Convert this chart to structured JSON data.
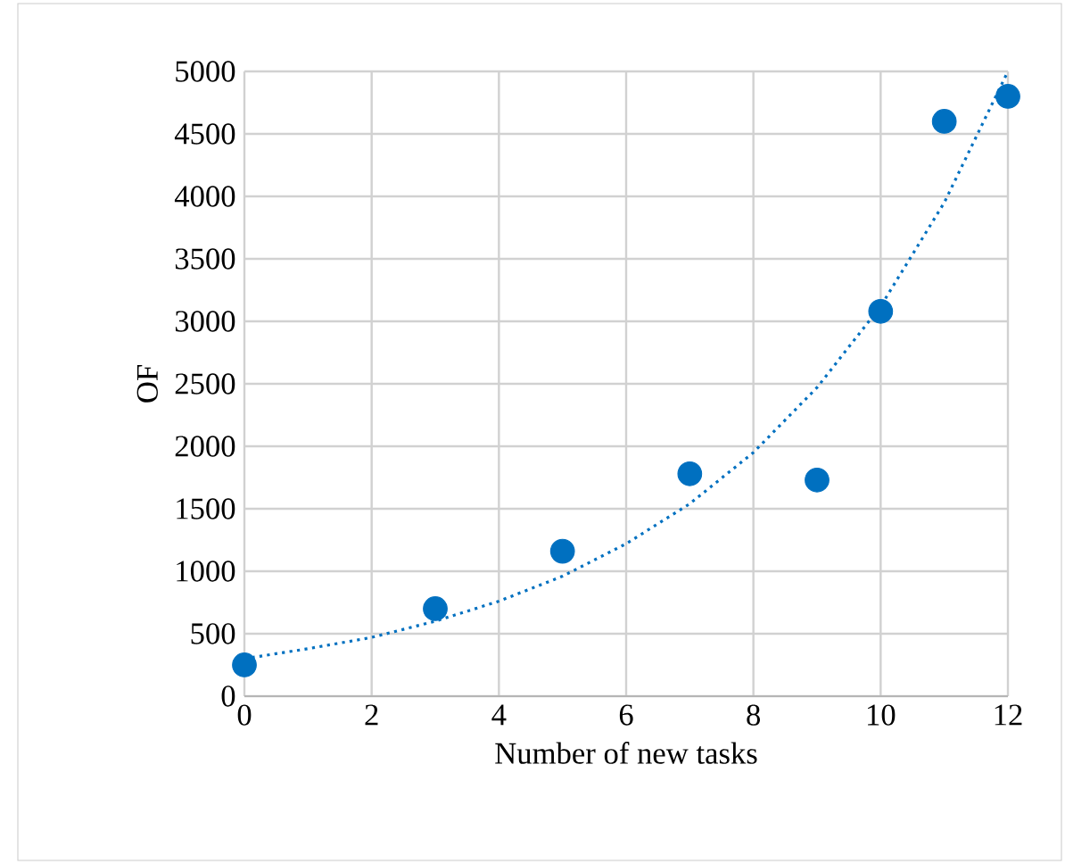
{
  "chart_data": {
    "type": "scatter",
    "xlabel": "Number of new tasks",
    "ylabel": "OF",
    "x": [
      0,
      3,
      5,
      7,
      9,
      10,
      11,
      12
    ],
    "series": [
      {
        "color": "#0070c0",
        "marker": "circle",
        "values": [
          250,
          700,
          1160,
          1780,
          1730,
          3080,
          4600,
          4800
        ]
      },
      {
        "type": "line",
        "color": "#0070c0",
        "line_style": "dotted",
        "marker": "none",
        "x": [
          0,
          1,
          2,
          3,
          4,
          5,
          6,
          7,
          8,
          9,
          10,
          11,
          12
        ],
        "values": [
          300,
          380,
          470,
          600,
          760,
          960,
          1220,
          1540,
          1950,
          2470,
          3120,
          3950,
          5000
        ]
      }
    ],
    "xlim": [
      0,
      12
    ],
    "xticks": [
      0,
      2,
      4,
      6,
      8,
      10,
      12
    ],
    "ylim": [
      0,
      5000
    ],
    "yticks": [
      0,
      500,
      1000,
      1500,
      2000,
      2500,
      3000,
      3500,
      4000,
      4500,
      5000
    ],
    "grid": true,
    "legend": false
  }
}
